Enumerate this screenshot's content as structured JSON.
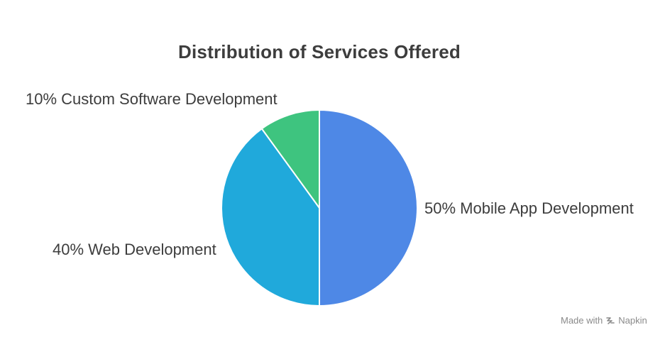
{
  "chart_data": {
    "type": "pie",
    "title": "Distribution of Services Offered",
    "slices": [
      {
        "label": "Mobile App Development",
        "value": 50,
        "display": "50% Mobile App Development",
        "color": "#4e88e6"
      },
      {
        "label": "Web Development",
        "value": 40,
        "display": "40% Web Development",
        "color": "#20a9db"
      },
      {
        "label": "Custom Software Development",
        "value": 10,
        "display": "10% Custom Software Development",
        "color": "#3ec47f"
      }
    ]
  },
  "watermark": {
    "made_with": "Made with",
    "brand": "Napkin",
    "icon": "napkin-logo-icon"
  }
}
